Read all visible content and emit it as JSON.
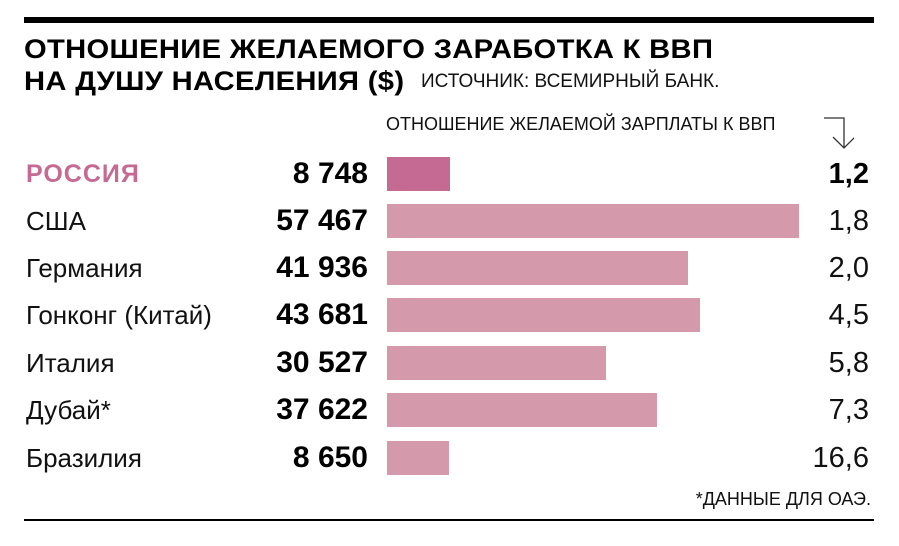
{
  "header": {
    "title_line1": "ОТНОШЕНИЕ ЖЕЛАЕМОГО ЗАРАБОТКА К ВВП",
    "title_line2": "НА ДУШУ НАСЕЛЕНИЯ ($)",
    "source": "ИСТОЧНИК: ВСЕМИРНЫЙ БАНК.",
    "ratio_column_label": "ОТНОШЕНИЕ ЖЕЛАЕМОЙ ЗАРПЛАТЫ К ВВП",
    "arrow_icon": "down-arrow-icon"
  },
  "footnote": "*ДАННЫЕ ДЛЯ ОАЭ.",
  "colors": {
    "highlight": "#c46a93",
    "bar": "#d49aab",
    "rule": "#000000"
  },
  "rows": [
    {
      "country": "РОССИЯ",
      "gdp": "8 748",
      "ratio": "1,2",
      "highlight": true
    },
    {
      "country": "США",
      "gdp": "57 467",
      "ratio": "1,8"
    },
    {
      "country": "Германия",
      "gdp": "41 936",
      "ratio": "2,0"
    },
    {
      "country": "Гонконг (Китай)",
      "gdp": "43 681",
      "ratio": "4,5"
    },
    {
      "country": "Италия",
      "gdp": "30 527",
      "ratio": "5,8"
    },
    {
      "country": "Дубай*",
      "gdp": "37 622",
      "ratio": "7,3"
    },
    {
      "country": "Бразилия",
      "gdp": "8 650",
      "ratio": "16,6"
    }
  ],
  "chart_data": {
    "type": "bar",
    "orientation": "horizontal",
    "title": "Отношение желаемого заработка к ВВП на душу населения ($)",
    "subtitle": "Источник: Всемирный банк.",
    "categories": [
      "Россия",
      "США",
      "Германия",
      "Гонконг (Китай)",
      "Италия",
      "Дубай*",
      "Бразилия"
    ],
    "series": [
      {
        "name": "ВВП на душу населения ($)",
        "values": [
          8748,
          57467,
          41936,
          43681,
          30527,
          37622,
          8650
        ]
      },
      {
        "name": "Отношение желаемой зарплаты к ВВП",
        "values": [
          1.2,
          1.8,
          2.0,
          4.5,
          5.8,
          7.3,
          16.6
        ]
      }
    ],
    "bar_series": "ВВП на душу населения ($)",
    "highlighted_category": "Россия",
    "annotations": [
      "*Данные для ОАЭ."
    ],
    "grid": false,
    "legend": "none"
  }
}
